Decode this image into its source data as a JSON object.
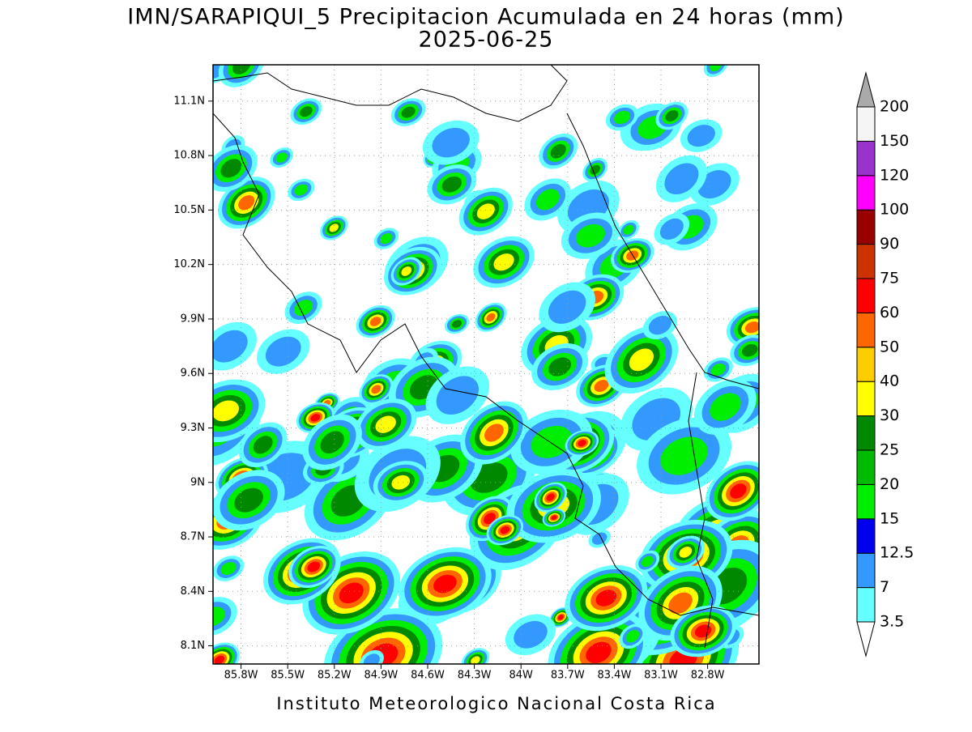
{
  "title": "IMN/SARAPIQUI_5 Precipitacion Acumulada en 24 horas (mm)",
  "subtitle": "2025-06-25",
  "footer": "Instituto Meteorologico Nacional Costa Rica",
  "map": {
    "lon_range": [
      -85.98,
      -82.47
    ],
    "lat_range": [
      8.0,
      11.3
    ],
    "grid": true,
    "lon_ticks": [
      {
        "value": -85.8,
        "label": "85.8W"
      },
      {
        "value": -85.5,
        "label": "85.5W"
      },
      {
        "value": -85.2,
        "label": "85.2W"
      },
      {
        "value": -84.9,
        "label": "84.9W"
      },
      {
        "value": -84.6,
        "label": "84.6W"
      },
      {
        "value": -84.3,
        "label": "84.3W"
      },
      {
        "value": -84.0,
        "label": "84W"
      },
      {
        "value": -83.7,
        "label": "83.7W"
      },
      {
        "value": -83.4,
        "label": "83.4W"
      },
      {
        "value": -83.1,
        "label": "83.1W"
      },
      {
        "value": -82.8,
        "label": "82.8W"
      }
    ],
    "lat_ticks": [
      {
        "value": 8.1,
        "label": "8.1N"
      },
      {
        "value": 8.4,
        "label": "8.4N"
      },
      {
        "value": 8.7,
        "label": "8.7N"
      },
      {
        "value": 9.0,
        "label": "9N"
      },
      {
        "value": 9.3,
        "label": "9.3N"
      },
      {
        "value": 9.6,
        "label": "9.6N"
      },
      {
        "value": 9.9,
        "label": "9.9N"
      },
      {
        "value": 10.2,
        "label": "10.2N"
      },
      {
        "value": 10.5,
        "label": "10.5N"
      },
      {
        "value": 10.8,
        "label": "10.8N"
      },
      {
        "value": 11.1,
        "label": "11.1N"
      }
    ]
  },
  "colorbar": {
    "levels": [
      3.5,
      7,
      12.5,
      15,
      20,
      25,
      30,
      40,
      50,
      60,
      75,
      90,
      100,
      120,
      150,
      200
    ],
    "interval_colors": [
      "#66ffff",
      "#3399ff",
      "#0000ee",
      "#00ee00",
      "#00bb00",
      "#008800",
      "#ffff00",
      "#ffcc00",
      "#ff6600",
      "#ff0000",
      "#cc3300",
      "#990000",
      "#ff00ff",
      "#9933cc",
      "#f5f5f5"
    ],
    "under_color": "#ffffff",
    "over_color": "#aaaaaa"
  }
}
